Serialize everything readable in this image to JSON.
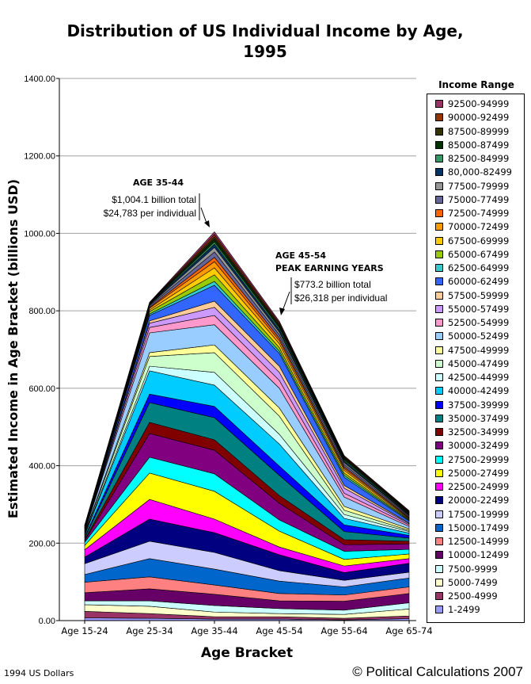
{
  "chart_data": {
    "type": "area",
    "stacked": true,
    "title": "Distribution of US Individual Income by Age, 1995",
    "xlabel": "Age Bracket",
    "ylabel": "Estimated Income in Age Bracket (billions USD)",
    "ylim": [
      0,
      1400
    ],
    "yticks": [
      "0.00",
      "200.00",
      "400.00",
      "600.00",
      "800.00",
      "1000.00",
      "1200.00",
      "1400.00"
    ],
    "grid": true,
    "legend_title": "Income Range",
    "legend_position": "right",
    "categories": [
      "Age 15-24",
      "Age 25-34",
      "Age 35-44",
      "Age 45-54",
      "Age 55-64",
      "Age 65-74"
    ],
    "series": [
      {
        "name": "1-2499",
        "color": "#9999FF",
        "values": [
          7,
          6,
          4,
          4,
          2,
          5
        ]
      },
      {
        "name": "2500-4999",
        "color": "#993366",
        "values": [
          17,
          12,
          6,
          6,
          4,
          7
        ]
      },
      {
        "name": "5000-7499",
        "color": "#FFFFCC",
        "values": [
          17,
          19,
          12,
          8,
          10,
          18
        ]
      },
      {
        "name": "7500-9999",
        "color": "#CCFFFF",
        "values": [
          10,
          14,
          17,
          13,
          11,
          16
        ]
      },
      {
        "name": "10000-12499",
        "color": "#660066",
        "values": [
          21,
          31,
          29,
          20,
          23,
          24
        ]
      },
      {
        "name": "12500-14999",
        "color": "#FF8080",
        "values": [
          27,
          31,
          24,
          19,
          16,
          17
        ]
      },
      {
        "name": "15000-17499",
        "color": "#0066CC",
        "values": [
          20,
          47,
          41,
          32,
          21,
          23
        ]
      },
      {
        "name": "17500-19999",
        "color": "#CCCCFF",
        "values": [
          28,
          45,
          43,
          27,
          17,
          15
        ]
      },
      {
        "name": "20000-22499",
        "color": "#000080",
        "values": [
          17,
          57,
          51,
          41,
          20,
          23
        ]
      },
      {
        "name": "22500-24999",
        "color": "#FF00FF",
        "values": [
          19,
          51,
          35,
          20,
          17,
          12
        ]
      },
      {
        "name": "25000-27499",
        "color": "#FFFF00",
        "values": [
          11,
          68,
          72,
          41,
          17,
          12
        ]
      },
      {
        "name": "27500-29999",
        "color": "#00FFFF",
        "values": [
          8,
          41,
          45,
          29,
          21,
          12
        ]
      },
      {
        "name": "30000-32499",
        "color": "#800080",
        "values": [
          4,
          61,
          61,
          43,
          17,
          14
        ]
      },
      {
        "name": "32500-34999",
        "color": "#800000",
        "values": [
          3,
          29,
          27,
          20,
          13,
          7
        ]
      },
      {
        "name": "35000-37499",
        "color": "#008080",
        "values": [
          4,
          51,
          57,
          52,
          21,
          8
        ]
      },
      {
        "name": "37500-39999",
        "color": "#0000FF",
        "values": [
          3,
          22,
          29,
          24,
          17,
          7
        ]
      },
      {
        "name": "40000-42499",
        "color": "#00CCFF",
        "values": [
          4,
          60,
          55,
          57,
          17,
          6
        ]
      },
      {
        "name": "42500-44999",
        "color": "#CCFFFF",
        "values": [
          2,
          12,
          33,
          25,
          10,
          4
        ]
      },
      {
        "name": "45000-47499",
        "color": "#CCFFCC",
        "values": [
          3,
          25,
          51,
          47,
          11,
          3
        ]
      },
      {
        "name": "47500-49999",
        "color": "#FFFF99",
        "values": [
          2,
          10,
          20,
          21,
          10,
          4
        ]
      },
      {
        "name": "50000-52499",
        "color": "#99CCFF",
        "values": [
          3,
          51,
          52,
          51,
          24,
          6
        ]
      },
      {
        "name": "52500-54999",
        "color": "#FF99CC",
        "values": [
          1,
          14,
          24,
          20,
          10,
          4
        ]
      },
      {
        "name": "55000-57499",
        "color": "#CC99FF",
        "values": [
          2,
          11,
          21,
          21,
          13,
          3
        ]
      },
      {
        "name": "57500-59999",
        "color": "#FFCC99",
        "values": [
          1,
          6,
          16,
          16,
          7,
          2
        ]
      },
      {
        "name": "60000-62499",
        "color": "#3366FF",
        "values": [
          2,
          14,
          41,
          33,
          21,
          5
        ]
      },
      {
        "name": "62500-64999",
        "color": "#33CCCC",
        "values": [
          1,
          4,
          10,
          6,
          5,
          2
        ]
      },
      {
        "name": "65000-67499",
        "color": "#99CC00",
        "values": [
          1,
          6,
          17,
          9,
          6,
          2
        ]
      },
      {
        "name": "67500-69999",
        "color": "#FFCC00",
        "values": [
          1,
          4,
          18,
          10,
          7,
          2
        ]
      },
      {
        "name": "70000-72499",
        "color": "#FF9900",
        "values": [
          1,
          5,
          16,
          8,
          5,
          2
        ]
      },
      {
        "name": "72500-74999",
        "color": "#FF6600",
        "values": [
          1,
          2,
          11,
          6,
          4,
          2
        ]
      },
      {
        "name": "75000-77499",
        "color": "#666699",
        "values": [
          1,
          4,
          14,
          9,
          6,
          3
        ]
      },
      {
        "name": "77500-79999",
        "color": "#969696",
        "values": [
          1,
          2,
          12,
          7,
          5,
          2
        ]
      },
      {
        "name": "80,000-82499",
        "color": "#003366",
        "values": [
          1,
          2,
          8,
          6,
          4,
          2
        ]
      },
      {
        "name": "82500-84999",
        "color": "#339966",
        "values": [
          0.5,
          1,
          6,
          5,
          3,
          2
        ]
      },
      {
        "name": "85000-87499",
        "color": "#003300",
        "values": [
          0.5,
          1,
          7,
          5,
          4,
          2
        ]
      },
      {
        "name": "87500-89999",
        "color": "#333300",
        "values": [
          0.5,
          1,
          6,
          4,
          3,
          2
        ]
      },
      {
        "name": "90000-92499",
        "color": "#993300",
        "values": [
          0.5,
          1,
          6,
          4,
          2,
          2
        ]
      },
      {
        "name": "92500-94999",
        "color": "#993366",
        "values": [
          0.5,
          1,
          7,
          4,
          2,
          2
        ]
      }
    ],
    "annotations": [
      {
        "heading": [
          "AGE 35-44"
        ],
        "lines": [
          "$1,004.1 billion total",
          "$24,783 per individual"
        ]
      },
      {
        "heading": [
          "AGE 45-54",
          "PEAK EARNING YEARS"
        ],
        "lines": [
          "$773.2 billion total",
          "$26,318 per individual"
        ]
      }
    ]
  },
  "footer": {
    "units_note": "1994 US Dollars",
    "credit": "© Political Calculations 2007"
  }
}
